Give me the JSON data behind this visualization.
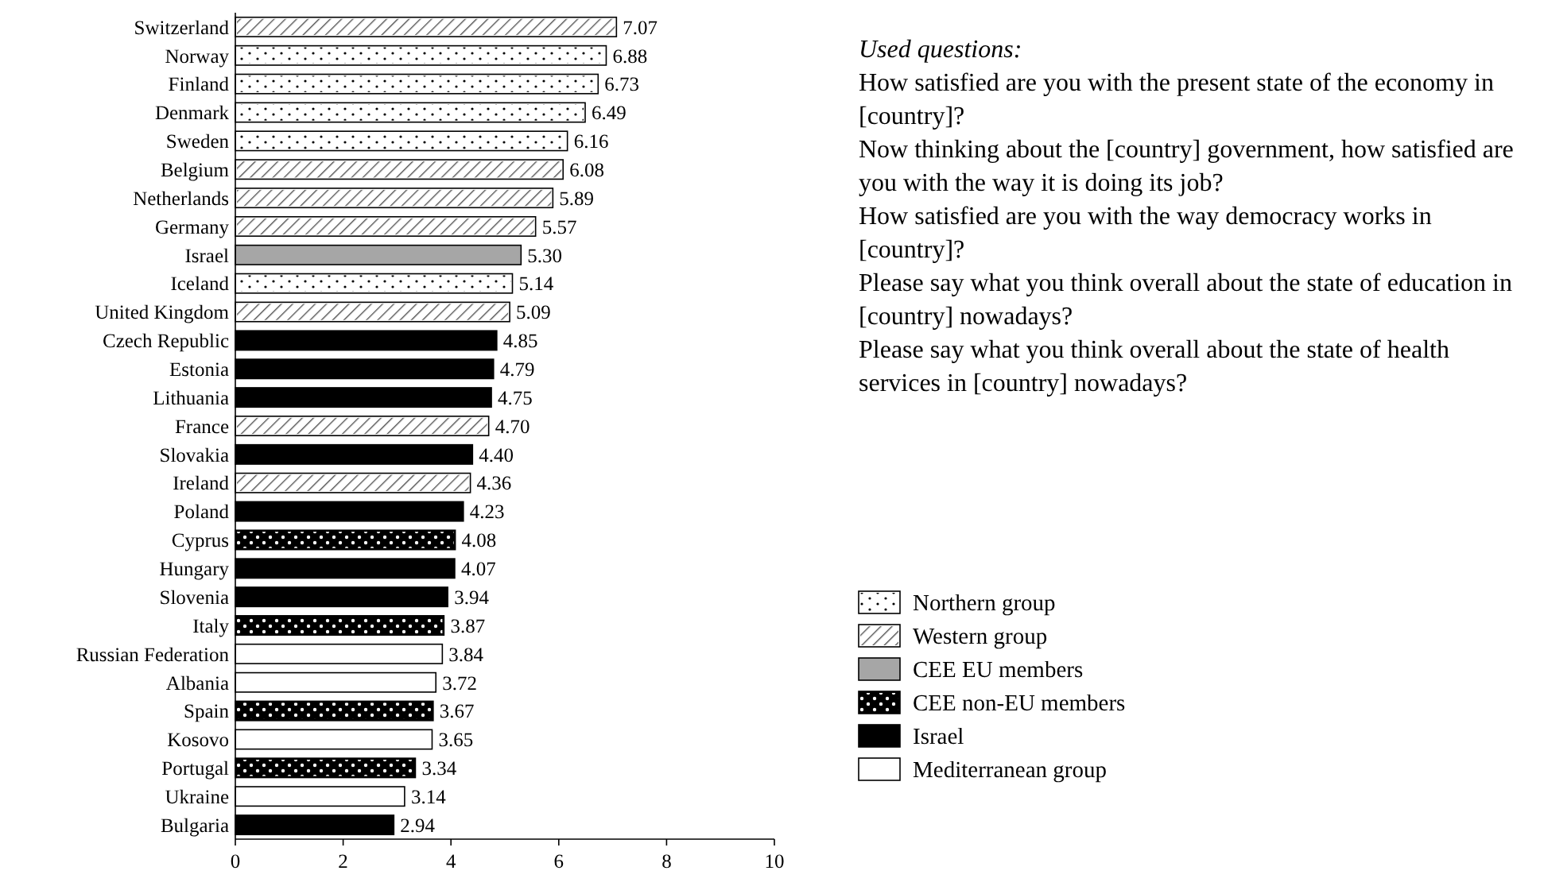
{
  "chart_data": {
    "type": "bar",
    "orientation": "horizontal",
    "legend": "right",
    "xlim": [
      0,
      10
    ],
    "xticks": [
      0,
      2,
      4,
      6,
      8,
      10
    ],
    "categories": [
      "Switzerland",
      "Norway",
      "Finland",
      "Denmark",
      "Sweden",
      "Belgium",
      "Netherlands",
      "Germany",
      "Israel",
      "Iceland",
      "United Kingdom",
      "Czech Republic",
      "Estonia",
      "Lithuania",
      "France",
      "Slovakia",
      "Ireland",
      "Poland",
      "Cyprus",
      "Hungary",
      "Slovenia",
      "Italy",
      "Russian Federation",
      "Albania",
      "Spain",
      "Kosovo",
      "Portugal",
      "Ukraine",
      "Bulgaria"
    ],
    "series": [
      {
        "name": "Northern group",
        "color": "#ffffff",
        "values": [
          null,
          6.88,
          6.73,
          6.49,
          6.16,
          null,
          null,
          null,
          null,
          5.14,
          null,
          null,
          null,
          null,
          null,
          null,
          null,
          null,
          null,
          null,
          null,
          null,
          null,
          null,
          null,
          null,
          null,
          null,
          null
        ],
        "value_labels": [
          null,
          "6.88",
          "6.73",
          "6.49",
          "6.16",
          null,
          null,
          null,
          null,
          "5.14",
          null,
          null,
          null,
          null,
          null,
          null,
          null,
          null,
          null,
          null,
          null,
          null,
          null,
          null,
          null,
          null,
          null,
          null,
          null
        ]
      },
      {
        "name": "Western group",
        "color": "#ffffff",
        "values": [
          7.07,
          null,
          null,
          null,
          null,
          6.08,
          5.89,
          5.57,
          null,
          null,
          5.09,
          null,
          null,
          null,
          4.7,
          null,
          4.36,
          null,
          null,
          null,
          null,
          null,
          null,
          null,
          null,
          null,
          null,
          null,
          null
        ],
        "value_labels": [
          "7.07",
          null,
          null,
          null,
          null,
          "6.08",
          "5.89",
          "5.57",
          null,
          null,
          "5.09",
          null,
          null,
          null,
          "4.70",
          null,
          "4.36",
          null,
          null,
          null,
          null,
          null,
          null,
          null,
          null,
          null,
          null,
          null,
          null
        ]
      },
      {
        "name": "CEE EU members",
        "color": "#a6a6a6",
        "values": [
          null,
          null,
          null,
          null,
          null,
          null,
          null,
          null,
          5.3,
          null,
          null,
          null,
          null,
          null,
          null,
          null,
          null,
          null,
          null,
          null,
          null,
          null,
          null,
          null,
          null,
          null,
          null,
          null,
          null
        ],
        "value_labels": [
          null,
          null,
          null,
          null,
          null,
          null,
          null,
          null,
          "5.30",
          null,
          null,
          null,
          null,
          null,
          null,
          null,
          null,
          null,
          null,
          null,
          null,
          null,
          null,
          null,
          null,
          null,
          null,
          null,
          null
        ]
      },
      {
        "name": "CEE non-EU members",
        "color": "#000000",
        "values": [
          null,
          null,
          null,
          null,
          null,
          null,
          null,
          null,
          null,
          null,
          null,
          null,
          null,
          null,
          null,
          null,
          null,
          null,
          4.08,
          null,
          null,
          3.87,
          null,
          null,
          3.67,
          null,
          3.34,
          null,
          null
        ],
        "value_labels": [
          null,
          null,
          null,
          null,
          null,
          null,
          null,
          null,
          null,
          null,
          null,
          null,
          null,
          null,
          null,
          null,
          null,
          null,
          "4.08",
          null,
          null,
          "3.87",
          null,
          null,
          "3.67",
          null,
          "3.34",
          null,
          null
        ]
      },
      {
        "name": "Israel",
        "color": "#000000",
        "values": [
          null,
          null,
          null,
          null,
          null,
          null,
          null,
          null,
          null,
          null,
          null,
          4.85,
          4.79,
          4.75,
          null,
          4.4,
          null,
          4.23,
          null,
          4.07,
          3.94,
          null,
          null,
          null,
          null,
          null,
          null,
          null,
          2.94
        ],
        "value_labels": [
          null,
          null,
          null,
          null,
          null,
          null,
          null,
          null,
          null,
          null,
          null,
          "4.85",
          "4.79",
          "4.75",
          null,
          "4.40",
          null,
          "4.23",
          null,
          "4.07",
          "3.94",
          null,
          null,
          null,
          null,
          null,
          null,
          null,
          "2.94"
        ]
      },
      {
        "name": "Mediterranean group",
        "color": "#ffffff",
        "values": [
          null,
          null,
          null,
          null,
          null,
          null,
          null,
          null,
          null,
          null,
          null,
          null,
          null,
          null,
          null,
          null,
          null,
          null,
          null,
          null,
          null,
          null,
          3.84,
          3.72,
          null,
          3.65,
          null,
          3.14,
          null
        ],
        "value_labels": [
          null,
          null,
          null,
          null,
          null,
          null,
          null,
          null,
          null,
          null,
          null,
          null,
          null,
          null,
          null,
          null,
          null,
          null,
          null,
          null,
          null,
          null,
          "3.84",
          "3.72",
          null,
          "3.65",
          null,
          "3.14",
          null
        ]
      }
    ],
    "annotations": [
      "Used questions:",
      "How satisfied are you with the present state of the economy in [country]?",
      "Now thinking about the [country] government, how satisfied are you with the way it is doing its job?",
      "How satisfied are you with the way democracy works in [country]?",
      "Please say what you think overall about the state of education in [country] nowadays?",
      "Please say what you think overall about the state of health services in [country] nowadays?"
    ]
  }
}
